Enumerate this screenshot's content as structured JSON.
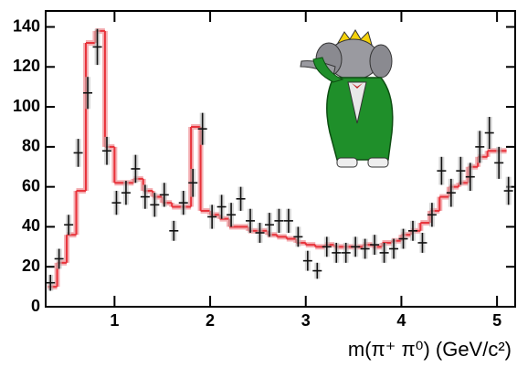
{
  "chart_data": {
    "type": "histogram",
    "x_label": "m(π⁺ π⁰) (GeV/c²)",
    "bins": [
      0.3,
      0.4,
      0.5,
      0.6,
      0.7,
      0.8,
      0.9,
      1.0,
      1.1,
      1.2,
      1.3,
      1.4,
      1.5,
      1.6,
      1.7,
      1.8,
      1.9,
      2.0,
      2.1,
      2.2,
      2.3,
      2.4,
      2.5,
      2.6,
      2.7,
      2.8,
      2.9,
      3.0,
      3.1,
      3.2,
      3.3,
      3.4,
      3.5,
      3.6,
      3.7,
      3.8,
      3.9,
      4.0,
      4.1,
      4.2,
      4.3,
      4.4,
      4.5,
      4.6,
      4.7,
      4.8,
      4.9,
      5.0,
      5.1
    ],
    "counts": [
      10,
      22,
      36,
      58,
      132,
      138,
      80,
      62,
      62,
      64,
      58,
      55,
      52,
      50,
      50,
      90,
      48,
      46,
      44,
      40,
      40,
      38,
      38,
      36,
      35,
      34,
      32,
      31,
      30,
      31,
      30,
      30,
      30,
      31,
      30,
      32,
      33,
      36,
      38,
      42,
      48,
      55,
      60,
      62,
      70,
      75,
      78,
      78
    ],
    "color": "#e8323a",
    "band_color": "#f4b0b4",
    "points": {
      "x": [
        0.33,
        0.42,
        0.52,
        0.62,
        0.72,
        0.82,
        0.92,
        1.02,
        1.12,
        1.22,
        1.32,
        1.42,
        1.52,
        1.62,
        1.72,
        1.82,
        1.92,
        2.02,
        2.12,
        2.22,
        2.32,
        2.42,
        2.52,
        2.62,
        2.72,
        2.82,
        2.92,
        3.02,
        3.12,
        3.22,
        3.32,
        3.42,
        3.52,
        3.62,
        3.72,
        3.82,
        3.92,
        4.02,
        4.12,
        4.22,
        4.32,
        4.42,
        4.52,
        4.62,
        4.72,
        4.82,
        4.92,
        5.02,
        5.12
      ],
      "y": [
        12,
        24,
        41,
        77,
        107,
        130,
        78,
        52,
        57,
        69,
        55,
        51,
        56,
        38,
        52,
        62,
        89,
        45,
        50,
        46,
        54,
        43,
        37,
        41,
        43,
        43,
        35,
        23,
        18,
        30,
        27,
        27,
        30,
        29,
        31,
        27,
        29,
        34,
        38,
        32,
        46,
        68,
        57,
        68,
        65,
        80,
        87,
        72,
        58
      ],
      "errors": [
        4,
        5,
        5,
        7,
        8,
        9,
        7,
        6,
        6,
        7,
        6,
        6,
        6,
        5,
        6,
        7,
        8,
        6,
        6,
        6,
        6,
        6,
        5,
        6,
        6,
        6,
        5,
        5,
        4,
        5,
        5,
        5,
        5,
        5,
        5,
        5,
        5,
        5,
        5,
        5,
        6,
        7,
        7,
        7,
        7,
        8,
        8,
        8,
        7
      ],
      "color": "#111111"
    },
    "xlim": [
      0.28,
      5.19
    ],
    "ylim": [
      0,
      148
    ],
    "xticks": [
      1,
      2,
      3,
      4,
      5
    ],
    "yticks": [
      0,
      20,
      40,
      60,
      80,
      100,
      120,
      140
    ]
  }
}
